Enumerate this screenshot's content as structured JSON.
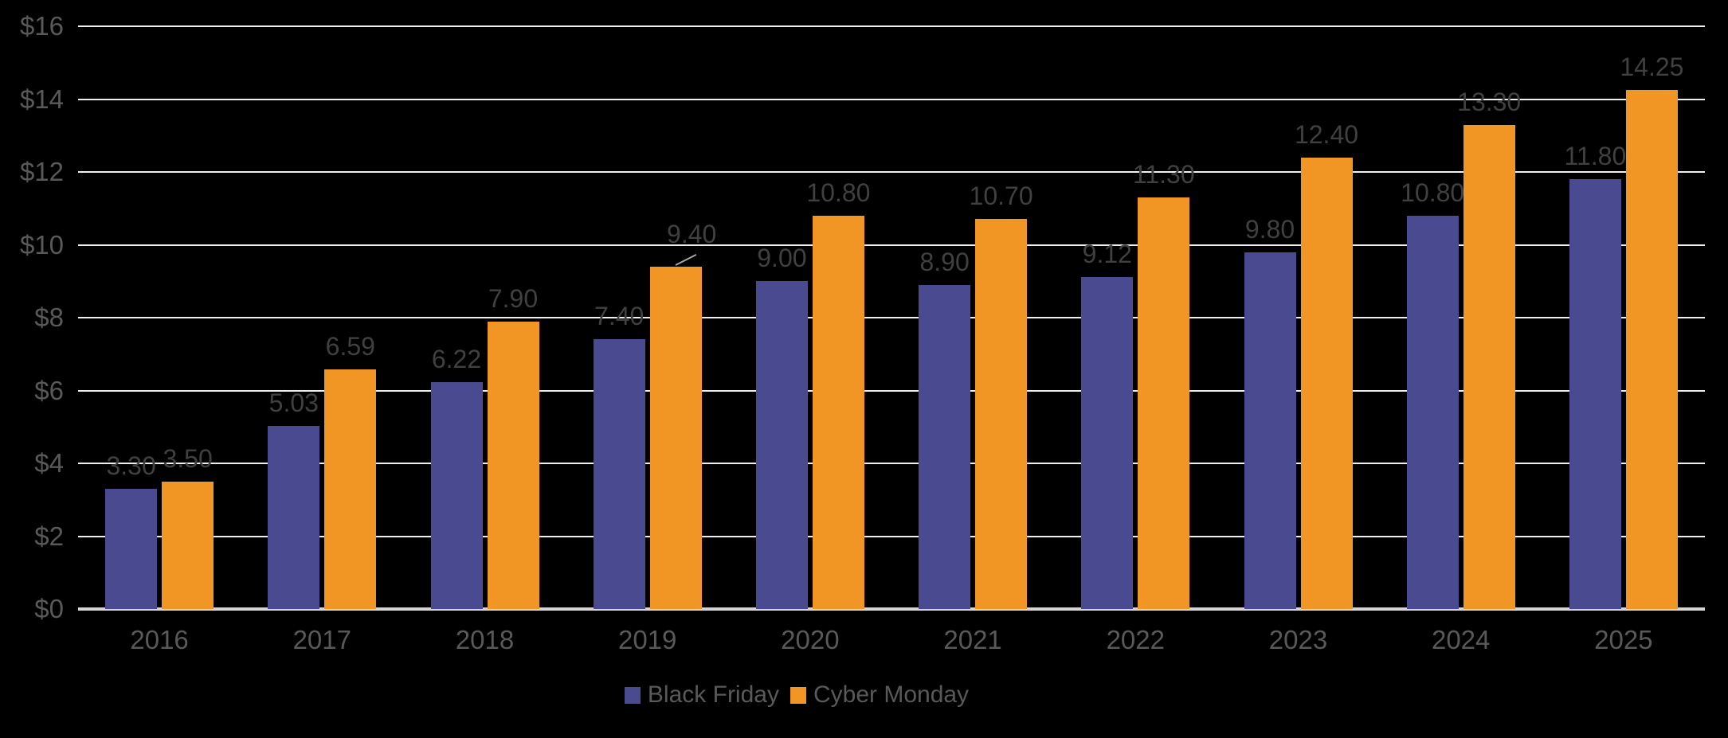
{
  "chart_data": {
    "type": "bar",
    "title": "",
    "categories": [
      "2016",
      "2017",
      "2018",
      "2019",
      "2020",
      "2021",
      "2022",
      "2023",
      "2024",
      "2025"
    ],
    "series": [
      {
        "name": "Black Friday",
        "color": "#4A4A90",
        "values": [
          3.3,
          5.03,
          6.22,
          7.4,
          9.0,
          8.9,
          9.12,
          9.8,
          10.8,
          11.8
        ],
        "labels": [
          "3.30",
          "5.03",
          "6.22",
          "7.40",
          "9.00",
          "8.90",
          "9.12",
          "9.80",
          "10.80",
          "11.80"
        ]
      },
      {
        "name": "Cyber Monday",
        "color": "#F19625",
        "values": [
          3.5,
          6.59,
          7.9,
          9.4,
          10.8,
          10.7,
          11.3,
          12.4,
          13.3,
          14.25
        ],
        "labels": [
          "3.50",
          "6.59",
          "7.90",
          "9.40",
          "10.80",
          "10.70",
          "11.30",
          "12.40",
          "13.30",
          "14.25"
        ]
      }
    ],
    "y_axis": {
      "min": 0,
      "max": 16,
      "step": 2,
      "tick_labels": [
        "$0",
        "$2",
        "$4",
        "$6",
        "$8",
        "$10",
        "$12",
        "$14",
        "$16"
      ]
    },
    "xlabel": "",
    "ylabel": "",
    "grid": true,
    "legend_position": "bottom",
    "callout_point": {
      "series_index": 1,
      "category": "2019"
    }
  },
  "style": {
    "background": "#000000",
    "grid_color": "#F0EFEF",
    "axis_line_color": "#D6D4D4",
    "tick_label_color": "#595959",
    "data_label_color": "#404040",
    "legend_text_color": "#595959",
    "leader_line_color": "#A6A6A6"
  }
}
